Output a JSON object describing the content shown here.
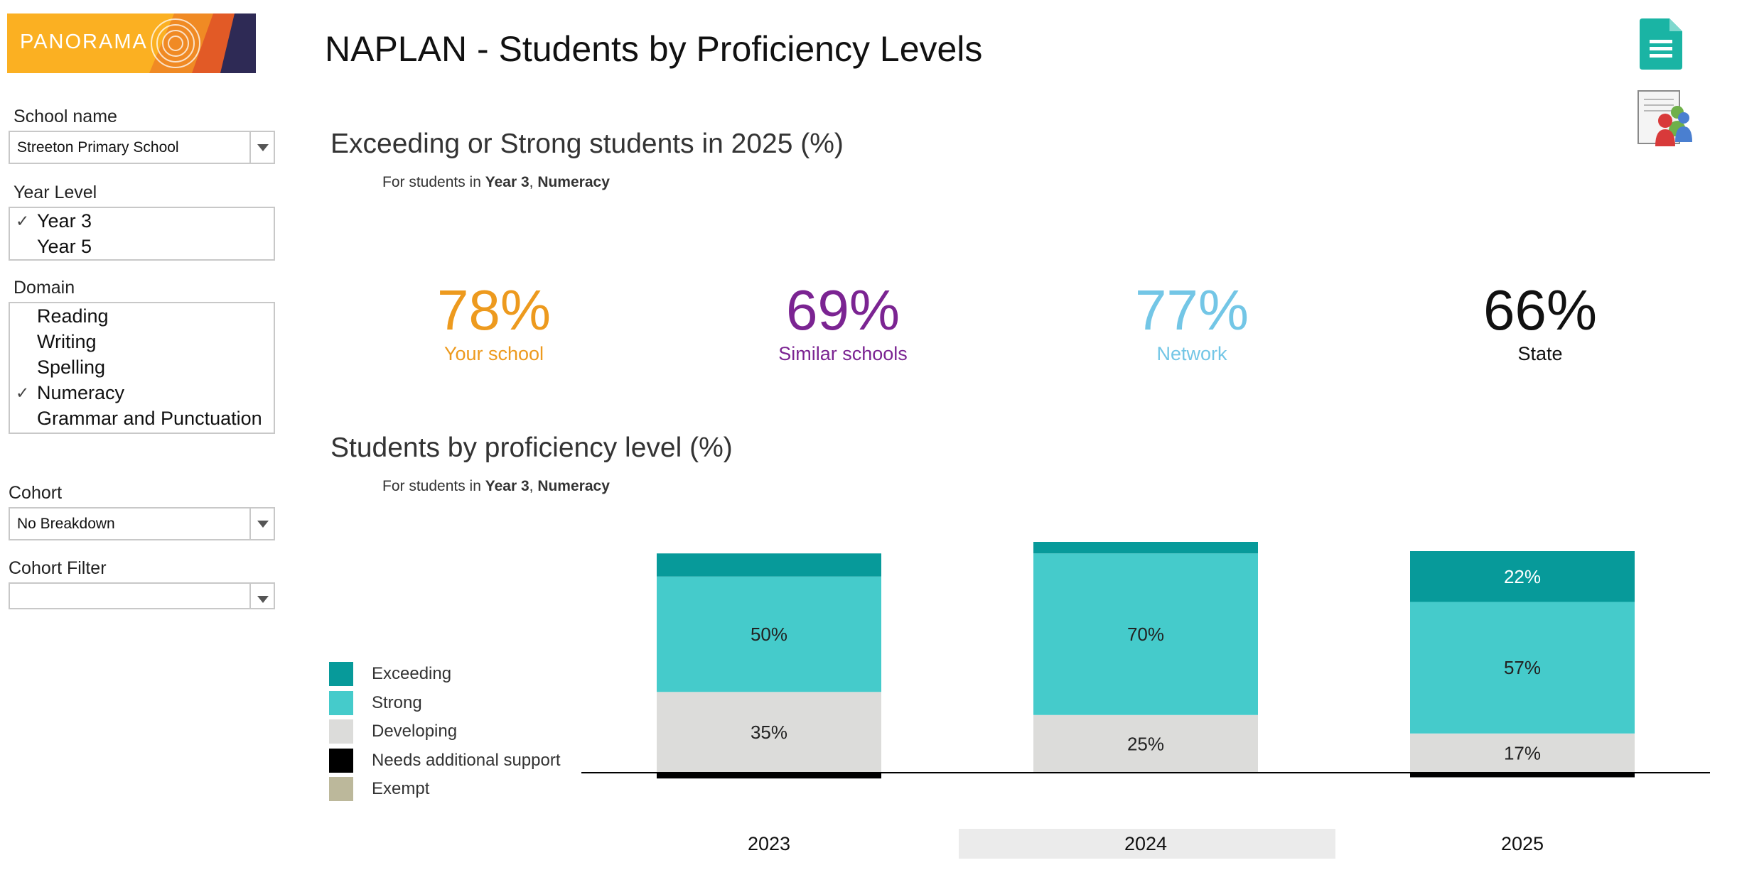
{
  "logo": {
    "text": "PANORAMA"
  },
  "page_title": "NAPLAN - Students by Proficiency Levels",
  "sidebar": {
    "school_name": {
      "label": "School name",
      "value": "Streeton Primary School"
    },
    "year_level": {
      "label": "Year Level",
      "items": [
        {
          "label": "Year 3",
          "check": "✓"
        },
        {
          "label": "Year 5",
          "check": ""
        }
      ]
    },
    "domain": {
      "label": "Domain",
      "items": [
        {
          "label": "Reading",
          "check": ""
        },
        {
          "label": "Writing",
          "check": ""
        },
        {
          "label": "Spelling",
          "check": ""
        },
        {
          "label": "Numeracy",
          "check": "✓"
        },
        {
          "label": "Grammar and Punctuation",
          "check": ""
        }
      ]
    },
    "cohort": {
      "label": "Cohort",
      "value": "No Breakdown"
    },
    "cohort_filter": {
      "label": "Cohort Filter",
      "value": ""
    }
  },
  "kpi_section": {
    "title": "Exceeding or Strong students in 2025 (%)",
    "subtitle_prefix": "For students in ",
    "subtitle_year": "Year 3",
    "subtitle_sep": ", ",
    "subtitle_domain": "Numeracy",
    "items": [
      {
        "value": "78%",
        "label": "Your school",
        "color": "#ED9A1E"
      },
      {
        "value": "69%",
        "label": "Similar schools",
        "color": "#7B2492"
      },
      {
        "value": "77%",
        "label": "Network",
        "color": "#73C6E6"
      },
      {
        "value": "66%",
        "label": "State",
        "color": "#111111"
      }
    ]
  },
  "chart_section": {
    "title": "Students by proficiency level (%)",
    "subtitle_prefix": "For students in ",
    "subtitle_year": "Year 3",
    "subtitle_sep": ", ",
    "subtitle_domain": "Numeracy"
  },
  "legend": [
    {
      "label": "Exceeding",
      "color": "#079A9A"
    },
    {
      "label": "Strong",
      "color": "#45CBCB"
    },
    {
      "label": "Developing",
      "color": "#DCDCDA"
    },
    {
      "label": "Needs additional support",
      "color": "#000000"
    },
    {
      "label": "Exempt",
      "color": "#BCB89B"
    }
  ],
  "chart_data": {
    "type": "bar",
    "stacked": true,
    "categories": [
      "2023",
      "2024",
      "2025"
    ],
    "highlighted_category": "2024",
    "series": [
      {
        "name": "Needs additional support",
        "values": [
          5,
          0,
          4
        ],
        "color": "#000000",
        "below_axis": true,
        "labels": [
          "",
          "",
          ""
        ]
      },
      {
        "name": "Developing",
        "values": [
          35,
          25,
          17
        ],
        "color": "#DCDCDA",
        "labels": [
          "35%",
          "25%",
          "17%"
        ],
        "label_color": "#222222"
      },
      {
        "name": "Strong",
        "values": [
          50,
          70,
          57
        ],
        "color": "#45CBCB",
        "labels": [
          "50%",
          "70%",
          "57%"
        ],
        "label_color": "#222222"
      },
      {
        "name": "Exceeding",
        "values": [
          10,
          5,
          22
        ],
        "color": "#079A9A",
        "labels": [
          "",
          "",
          "22%"
        ],
        "label_color": "#ffffff"
      }
    ],
    "ylim": [
      -5,
      100
    ],
    "xlabel": "",
    "ylabel": ""
  }
}
